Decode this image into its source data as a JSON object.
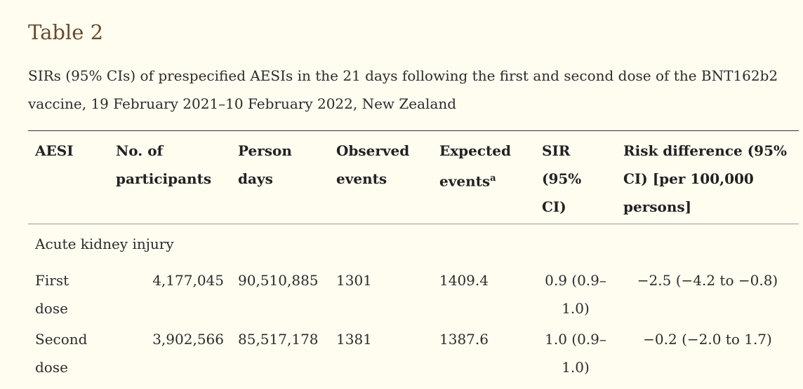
{
  "title": "Table 2",
  "caption": "SIRs (95% CIs) of prespecified AESIs in the 21 days following the first and second dose of the BNT162b2 vaccine, 19 February 2021–10 February 2022, New Zealand",
  "headers": {
    "aesi": "AESI",
    "participants": "No. of participants",
    "person_days": "Person days",
    "observed": "Observed events",
    "expected": "Expected events",
    "expected_sup": "a",
    "sir": "SIR (95% CI)",
    "risk_difference": "Risk difference (95% CI) [per 100,000 persons]"
  },
  "group": "Acute kidney injury",
  "rows": [
    {
      "label": "First dose",
      "participants": "4,177,045",
      "person_days": "90,510,885",
      "observed": "1301",
      "expected": "1409.4",
      "sir": "0.9 (0.9–1.0)",
      "risk_difference": "−2.5 (−4.2 to −0.8)"
    },
    {
      "label": "Second dose",
      "participants": "3,902,566",
      "person_days": "85,517,178",
      "observed": "1381",
      "expected": "1387.6",
      "sir": "1.0 (0.9–1.0)",
      "risk_difference": "−0.2 (−2.0 to 1.7)"
    }
  ]
}
